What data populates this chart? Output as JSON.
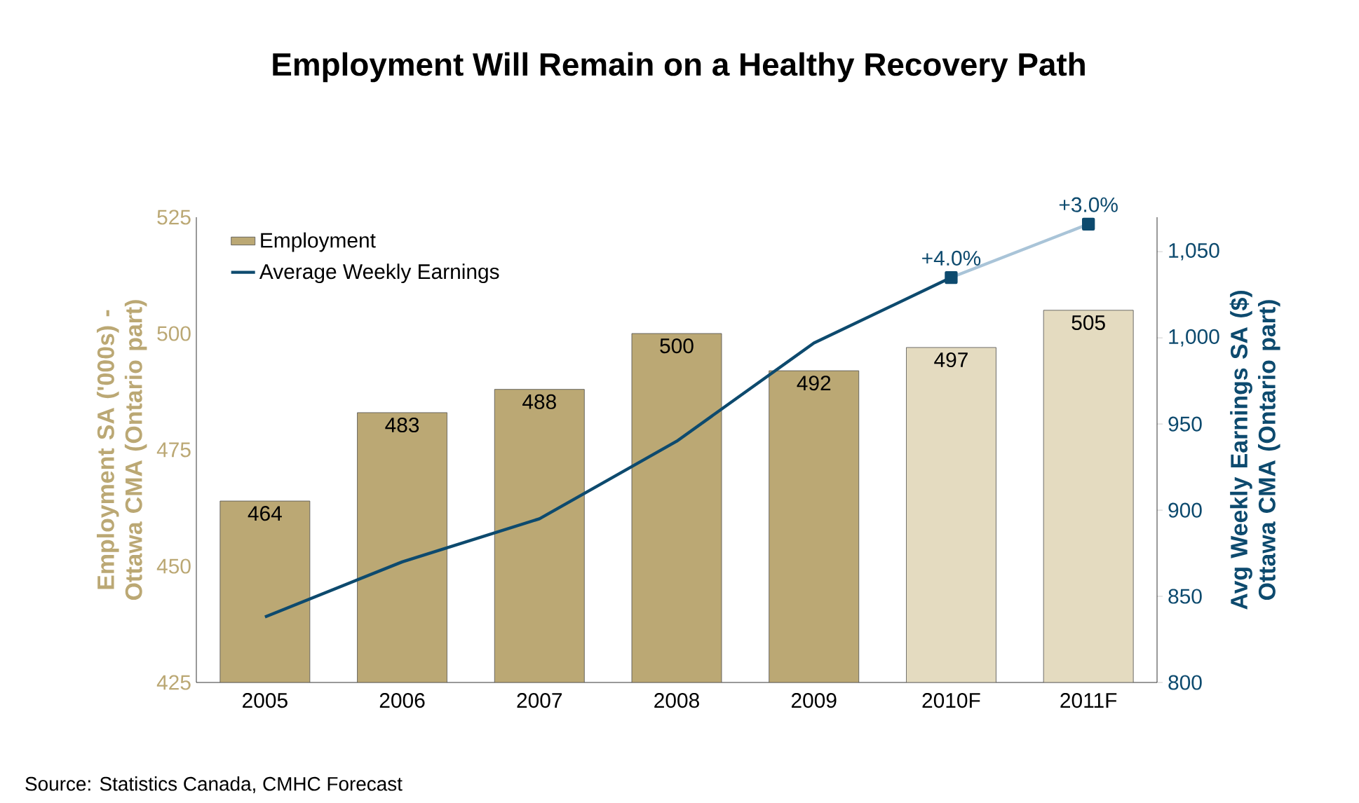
{
  "chart_data": {
    "type": "bar",
    "title": "Employment Will Remain on a Healthy Recovery Path",
    "categories": [
      "2005",
      "2006",
      "2007",
      "2008",
      "2009",
      "2010F",
      "2011F"
    ],
    "series": [
      {
        "name": "Employment",
        "colors": [
          "#bba874",
          "#bba874",
          "#bba874",
          "#bba874",
          "#bba874",
          "#e4dbc0",
          "#e4dbc0"
        ],
        "values": [
          464,
          483,
          488,
          500,
          492,
          497,
          505
        ],
        "value_labels": [
          "464",
          "483",
          "488",
          "500",
          "492",
          "497",
          "505"
        ]
      },
      {
        "name": "Average Weekly Earnings",
        "type": "line",
        "axis": "y2",
        "color": "#0d4a6e",
        "values": [
          838,
          870,
          895,
          940,
          997,
          1035,
          null
        ]
      },
      {
        "type": "line",
        "axis": "y2",
        "color": "#a9c4d8",
        "marker": "square",
        "values": [
          null,
          null,
          null,
          null,
          null,
          1035,
          1066
        ]
      }
    ],
    "ylabel": "Employment SA ('000s) - Ottawa CMA (Ontario part)",
    "y2label": "Avg Weekly Earnings SA ($) Ottawa CMA (Ontario part)",
    "ylim": [
      425,
      525
    ],
    "yticks": [
      425,
      450,
      475,
      500,
      525
    ],
    "y2lim": [
      800,
      1070
    ],
    "y2ticks": [
      800,
      850,
      900,
      950,
      {
        "value": 1000,
        "label": "1,000"
      },
      {
        "value": 1050,
        "label": "1,050"
      }
    ],
    "legend": "top left",
    "annotations": [
      "+4.0%",
      "+3.0%",
      "Source: Statistics Canada, CMHC Forecast"
    ]
  }
}
